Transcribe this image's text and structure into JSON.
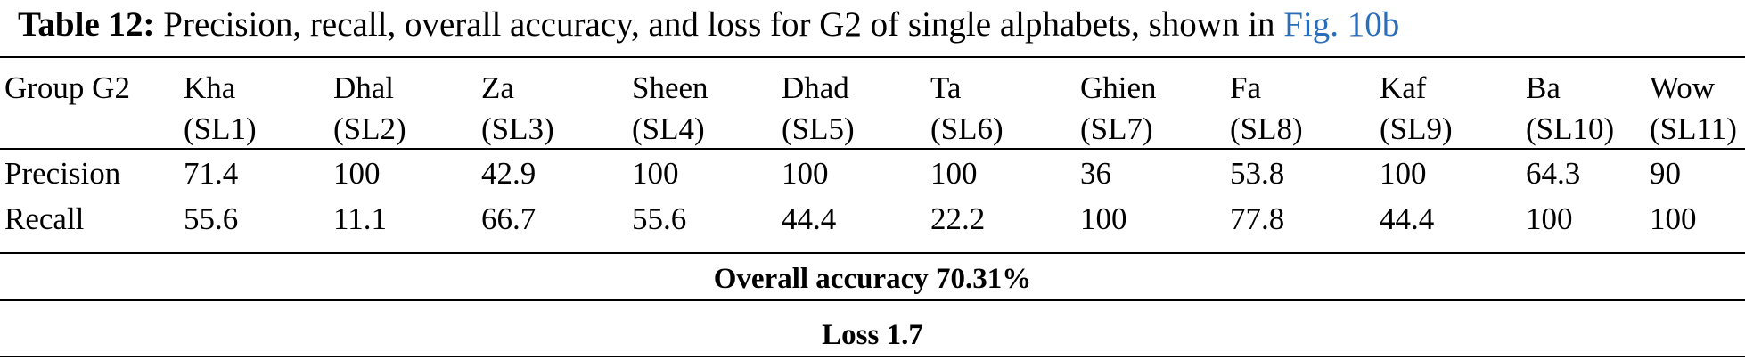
{
  "caption": {
    "label": "Table 12:",
    "text": " Precision, recall, overall accuracy, and loss for G2 of single alphabets, shown in ",
    "figure_ref": "Fig. 10b"
  },
  "table": {
    "corner_header": "Group G2",
    "columns": [
      {
        "name": "Kha",
        "code": "(SL1)"
      },
      {
        "name": "Dhal",
        "code": "(SL2)"
      },
      {
        "name": "Za",
        "code": "(SL3)"
      },
      {
        "name": "Sheen",
        "code": "(SL4)"
      },
      {
        "name": "Dhad",
        "code": "(SL5)"
      },
      {
        "name": "Ta",
        "code": "(SL6)"
      },
      {
        "name": "Ghien",
        "code": "(SL7)"
      },
      {
        "name": "Fa",
        "code": "(SL8)"
      },
      {
        "name": "Kaf",
        "code": "(SL9)"
      },
      {
        "name": "Ba",
        "code": "(SL10)"
      },
      {
        "name": "Wow",
        "code": "(SL11)"
      }
    ],
    "rows": [
      {
        "label": "Precision",
        "values": [
          "71.4",
          "100",
          "42.9",
          "100",
          "100",
          "100",
          "36",
          "53.8",
          "100",
          "64.3",
          "90"
        ]
      },
      {
        "label": "Recall",
        "values": [
          "55.6",
          "11.1",
          "66.7",
          "55.6",
          "44.4",
          "22.2",
          "100",
          "77.8",
          "44.4",
          "100",
          "100"
        ]
      }
    ],
    "overall_accuracy": "Overall accuracy 70.31%",
    "loss": "Loss 1.7"
  }
}
